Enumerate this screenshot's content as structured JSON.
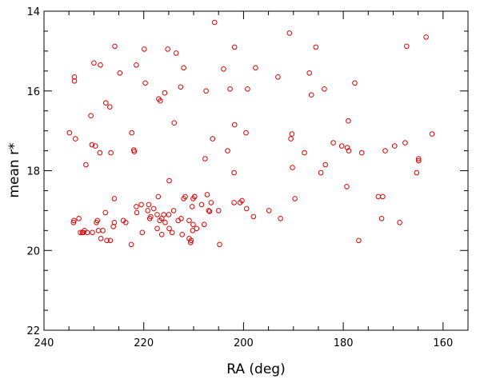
{
  "chart_data": {
    "type": "scatter",
    "xlabel": "RA (deg)",
    "ylabel": "mean r*",
    "xlim": [
      240,
      155
    ],
    "ylim": [
      14,
      22
    ],
    "x_reversed": true,
    "y_reversed": true,
    "grid": false,
    "x_major_ticks": [
      240,
      220,
      200,
      180,
      160
    ],
    "x_tick_labels": [
      "240",
      "220",
      "200",
      "180",
      "160"
    ],
    "x_minor_step": 5,
    "y_major_ticks": [
      14,
      16,
      18,
      20,
      22
    ],
    "y_tick_labels": [
      "14",
      "16",
      "18",
      "20",
      "22"
    ],
    "y_minor_step": 0.5,
    "marker": "open-circle",
    "marker_color": "#dd0000",
    "series": [
      {
        "x": [
          205.8,
          190.8,
          163.4,
          167.3,
          185.5,
          225.8,
          215.2,
          219.9,
          213.5,
          201.8,
          230.0,
          228.7,
          221.5,
          204.0,
          212.0,
          197.6,
          224.8,
          233.9,
          233.9,
          193.1,
          186.8,
          219.7,
          212.6,
          177.7,
          207.5,
          202.7,
          199.2,
          183.8,
          215.8,
          186.4,
          217.0,
          216.7,
          227.6,
          226.8,
          213.9,
          230.6,
          179.0,
          201.8,
          234.9,
          222.4,
          233.7,
          162.2,
          190.3,
          190.5,
          206.2,
          199.5,
          182.0,
          167.6,
          180.3,
          179.2,
          169.7,
          171.6,
          176.3,
          222.0,
          221.9,
          226.6,
          230.4,
          229.7,
          203.2,
          187.8,
          178.9,
          207.7,
          164.9,
          164.9,
          228.8,
          231.6,
          190.2,
          183.6,
          184.5,
          201.9,
          165.3,
          214.9,
          179.3,
          189.7,
          225.9,
          200.3,
          206.5,
          208.4,
          219.0,
          210.3,
          218.0,
          201.9,
          221.5,
          220.5,
          209.8,
          212.0,
          217.1,
          210.1,
          200.7,
          207.3,
          211.7,
          199.4,
          194.9,
          205.0,
          206.8,
          214.0,
          219.2,
          215.0,
          218.6,
          218.8,
          216.0,
          216.4,
          217.3,
          198.0,
          192.6,
          213.1,
          210.9,
          215.7,
          234.0,
          233.0,
          224.1,
          225.9,
          226.1,
          223.6,
          229.5,
          234.1,
          210.1,
          207.9,
          172.3,
          172.1,
          173.0,
          168.7,
          221.4,
          227.7,
          229.1,
          230.3,
          232.1,
          214.3,
          214.9,
          217.3,
          220.3,
          216.4,
          210.2,
          209.4,
          232.7,
          232.3,
          231.3,
          228.6,
          227.4,
          226.7,
          176.9,
          210.5,
          210.6,
          204.8,
          222.5,
          228.2,
          231.9,
          212.3,
          210.9,
          209.8,
          229.3,
          216.8,
          212.5,
          207.0
        ],
        "y": [
          14.28,
          14.55,
          14.65,
          14.88,
          14.9,
          14.88,
          14.95,
          14.95,
          15.05,
          14.9,
          15.3,
          15.35,
          15.35,
          15.45,
          15.42,
          15.42,
          15.55,
          15.65,
          15.75,
          15.65,
          15.55,
          15.8,
          15.9,
          15.8,
          16.0,
          15.95,
          15.95,
          15.95,
          16.05,
          16.1,
          16.2,
          16.25,
          16.3,
          16.4,
          16.8,
          16.62,
          16.75,
          16.85,
          17.05,
          17.05,
          17.2,
          17.08,
          17.08,
          17.2,
          17.2,
          17.05,
          17.3,
          17.3,
          17.38,
          17.42,
          17.38,
          17.5,
          17.55,
          17.48,
          17.52,
          17.55,
          17.35,
          17.38,
          17.5,
          17.55,
          17.5,
          17.7,
          17.7,
          17.75,
          17.55,
          17.85,
          17.92,
          17.85,
          18.05,
          18.05,
          18.05,
          18.25,
          18.4,
          18.7,
          18.7,
          18.75,
          18.8,
          18.85,
          18.85,
          18.9,
          18.95,
          18.8,
          18.9,
          18.85,
          18.65,
          18.7,
          18.65,
          18.7,
          18.8,
          18.6,
          18.65,
          18.95,
          19.0,
          19.0,
          19.02,
          19.0,
          19.0,
          19.1,
          19.15,
          19.2,
          19.1,
          19.2,
          19.1,
          19.15,
          19.2,
          19.25,
          19.25,
          19.3,
          19.25,
          19.2,
          19.25,
          19.3,
          19.4,
          19.3,
          19.3,
          19.3,
          19.35,
          19.35,
          19.2,
          18.65,
          18.65,
          19.3,
          19.05,
          19.05,
          19.5,
          19.55,
          19.55,
          19.55,
          19.45,
          19.45,
          19.55,
          19.6,
          19.5,
          19.45,
          19.55,
          19.55,
          19.55,
          19.7,
          19.75,
          19.75,
          19.75,
          19.75,
          19.8,
          19.85,
          19.85,
          19.5,
          19.5,
          19.6,
          19.7,
          18.65,
          19.25,
          19.25,
          19.2,
          19.0
        ]
      }
    ]
  }
}
